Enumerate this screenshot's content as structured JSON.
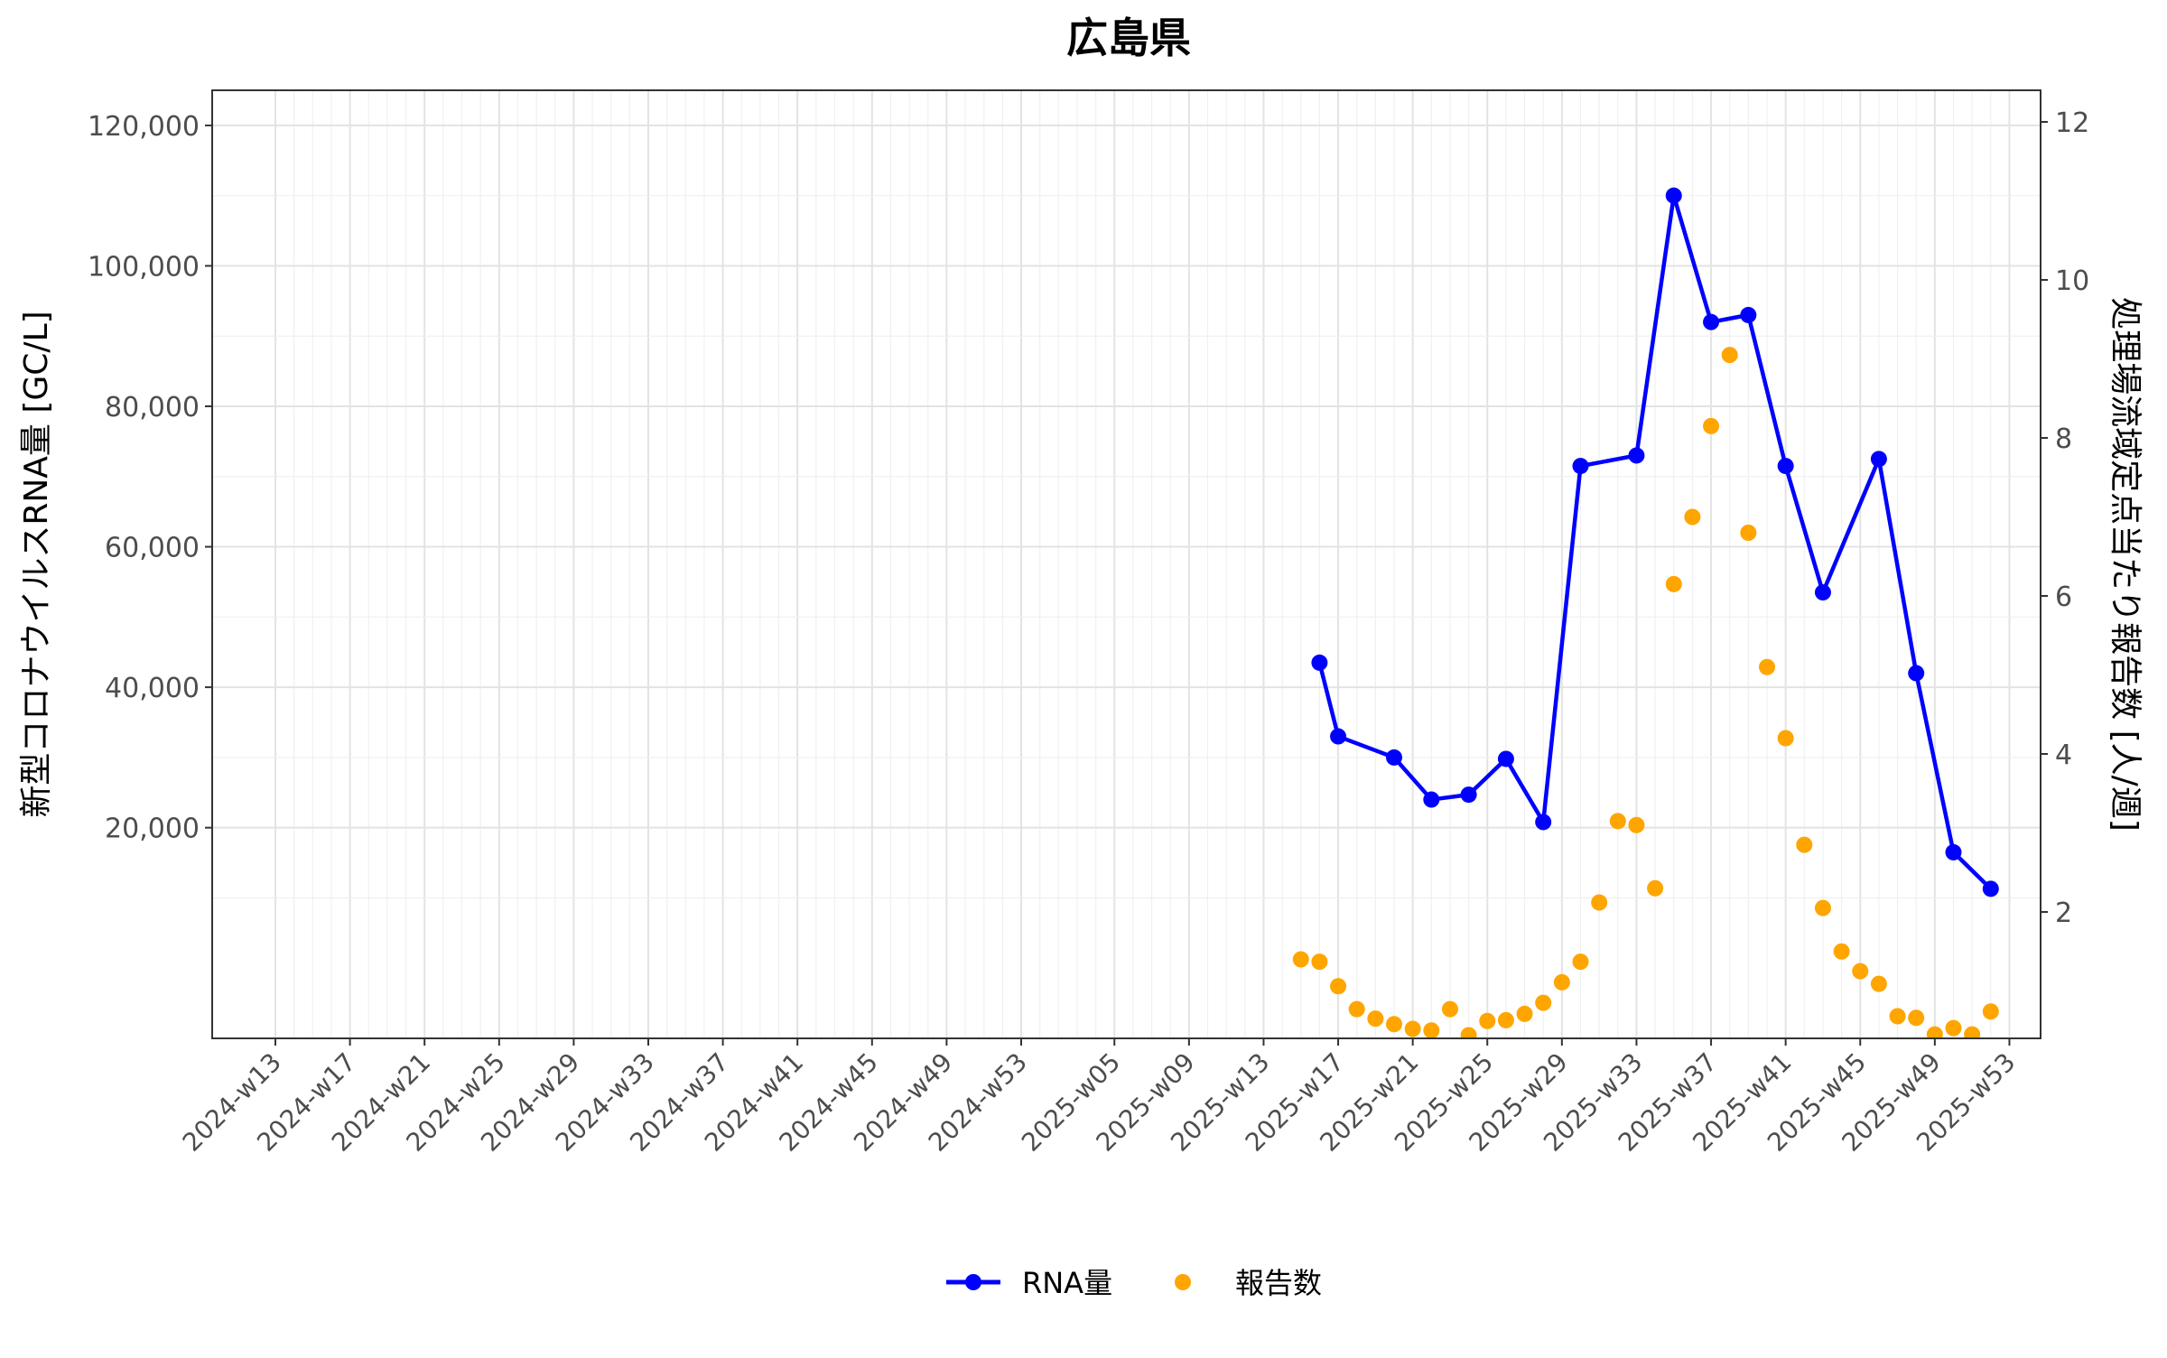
{
  "chart_data": {
    "type": "line",
    "title": "広島県",
    "xlabel": "",
    "ylabel_left": "新型コロナウイルスRNA量 [GC/L]",
    "ylabel_right": "処理場流域定点当たり報告数 [人/週]",
    "y_left_range": [
      -10000,
      125000
    ],
    "y_left_ticks": [
      "20,000",
      "40,000",
      "60,000",
      "80,000",
      "100,000",
      "120,000"
    ],
    "y_left_tick_values": [
      20000,
      40000,
      60000,
      80000,
      100000,
      120000
    ],
    "y_right_range": [
      0.4,
      12.4
    ],
    "y_right_ticks": [
      "2",
      "4",
      "6",
      "8",
      "10",
      "12"
    ],
    "y_right_tick_values": [
      2,
      4,
      6,
      8,
      10,
      12
    ],
    "x_weeks": [
      "2024-w13",
      "2024-w14",
      "2024-w15",
      "2024-w16",
      "2024-w17",
      "2024-w18",
      "2024-w19",
      "2024-w20",
      "2024-w21",
      "2024-w22",
      "2024-w23",
      "2024-w24",
      "2024-w25",
      "2024-w26",
      "2024-w27",
      "2024-w28",
      "2024-w29",
      "2024-w30",
      "2024-w31",
      "2024-w32",
      "2024-w33",
      "2024-w34",
      "2024-w35",
      "2024-w36",
      "2024-w37",
      "2024-w38",
      "2024-w39",
      "2024-w40",
      "2024-w41",
      "2024-w42",
      "2024-w43",
      "2024-w44",
      "2024-w45",
      "2024-w46",
      "2024-w47",
      "2024-w48",
      "2024-w49",
      "2024-w50",
      "2024-w51",
      "2024-w52",
      "2024-w53",
      "2025-w01",
      "2025-w02",
      "2025-w03",
      "2025-w04",
      "2025-w05",
      "2025-w06",
      "2025-w07",
      "2025-w08",
      "2025-w09",
      "2025-w10",
      "2025-w11",
      "2025-w12",
      "2025-w13",
      "2025-w14",
      "2025-w15",
      "2025-w16",
      "2025-w17",
      "2025-w18",
      "2025-w19",
      "2025-w20",
      "2025-w21",
      "2025-w22",
      "2025-w23",
      "2025-w24",
      "2025-w25",
      "2025-w26",
      "2025-w27",
      "2025-w28",
      "2025-w29",
      "2025-w30",
      "2025-w31",
      "2025-w32",
      "2025-w33",
      "2025-w34",
      "2025-w35",
      "2025-w36",
      "2025-w37",
      "2025-w38",
      "2025-w39",
      "2025-w40",
      "2025-w41",
      "2025-w42",
      "2025-w43",
      "2025-w44",
      "2025-w45",
      "2025-w46",
      "2025-w47",
      "2025-w48",
      "2025-w49",
      "2025-w50",
      "2025-w51",
      "2025-w52",
      "2025-w53"
    ],
    "x_tick_labels": [
      "2024-w13",
      "2024-w17",
      "2024-w21",
      "2024-w25",
      "2024-w29",
      "2024-w33",
      "2024-w37",
      "2024-w41",
      "2024-w45",
      "2024-w49",
      "2024-w53",
      "2025-w05",
      "2025-w09",
      "2025-w13",
      "2025-w17",
      "2025-w21",
      "2025-w25",
      "2025-w29",
      "2025-w33",
      "2025-w37",
      "2025-w41",
      "2025-w45",
      "2025-w49",
      "2025-w53"
    ],
    "series": [
      {
        "name": "RNA量",
        "axis": "left",
        "color": "#0000ff",
        "style": "line+marker",
        "x": [
          "2025-w16",
          "2025-w17",
          "2025-w20",
          "2025-w22",
          "2025-w24",
          "2025-w26",
          "2025-w28",
          "2025-w30",
          "2025-w33",
          "2025-w35",
          "2025-w37",
          "2025-w39",
          "2025-w41",
          "2025-w43",
          "2025-w46",
          "2025-w48",
          "2025-w50",
          "2025-w52"
        ],
        "y": [
          43500,
          33000,
          30000,
          24000,
          24700,
          29800,
          20800,
          71500,
          73000,
          110000,
          92000,
          93000,
          71500,
          53500,
          72500,
          42000,
          16500,
          11300
        ]
      },
      {
        "name": "報告数",
        "axis": "right",
        "color": "#ffa500",
        "style": "marker",
        "x": [
          "2025-w15",
          "2025-w16",
          "2025-w17",
          "2025-w18",
          "2025-w19",
          "2025-w20",
          "2025-w21",
          "2025-w22",
          "2025-w23",
          "2025-w24",
          "2025-w25",
          "2025-w26",
          "2025-w27",
          "2025-w28",
          "2025-w29",
          "2025-w30",
          "2025-w31",
          "2025-w32",
          "2025-w33",
          "2025-w34",
          "2025-w35",
          "2025-w36",
          "2025-w37",
          "2025-w38",
          "2025-w39",
          "2025-w40",
          "2025-w41",
          "2025-w42",
          "2025-w43",
          "2025-w44",
          "2025-w45",
          "2025-w46",
          "2025-w47",
          "2025-w48",
          "2025-w49",
          "2025-w50",
          "2025-w51",
          "2025-w52"
        ],
        "y": [
          1.4,
          1.37,
          1.06,
          0.77,
          0.65,
          0.58,
          0.52,
          0.5,
          0.77,
          0.44,
          0.62,
          0.63,
          0.71,
          0.85,
          1.11,
          1.37,
          2.12,
          3.15,
          3.1,
          2.3,
          6.15,
          7.0,
          8.15,
          9.05,
          6.8,
          5.1,
          4.2,
          2.85,
          2.05,
          1.5,
          1.25,
          1.09,
          0.68,
          0.66,
          0.45,
          0.53,
          0.45,
          0.74
        ]
      }
    ],
    "grid": true,
    "legend_position": "bottom"
  }
}
